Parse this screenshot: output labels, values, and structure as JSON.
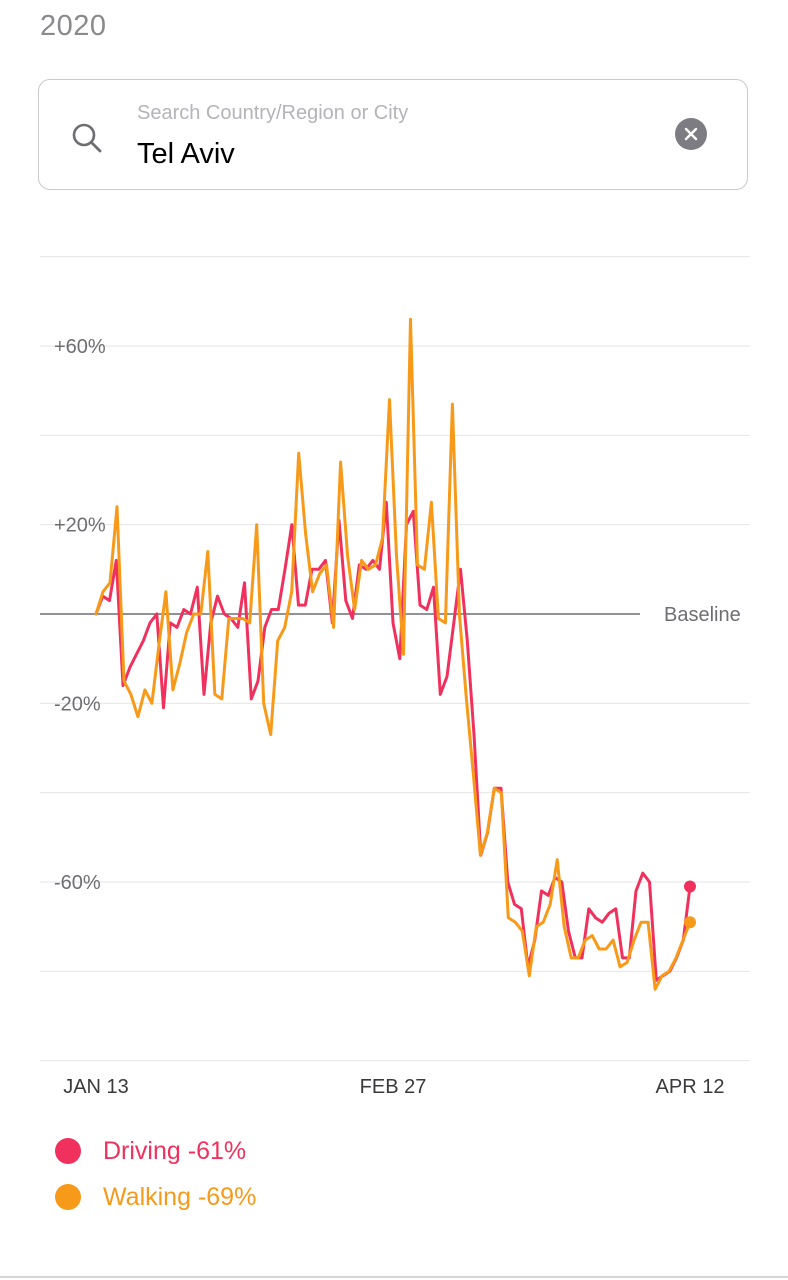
{
  "header": {
    "year": "2020"
  },
  "search": {
    "placeholder": "Search Country/Region or City",
    "value": "Tel Aviv",
    "icon": "search-icon",
    "clear_icon": "clear-icon"
  },
  "chart_data": {
    "type": "line",
    "y_ticks": [
      "+60%",
      "+20%",
      "-20%",
      "-60%"
    ],
    "y_tick_values": [
      60,
      20,
      -20,
      -60
    ],
    "ylim": [
      -100,
      80
    ],
    "grid": true,
    "baseline_label": "Baseline",
    "x_tick_labels": [
      "JAN 13",
      "FEB 27",
      "APR 12"
    ],
    "x_tick_days": [
      0,
      45,
      90
    ],
    "x_range": [
      "JAN 13",
      "APR 12"
    ],
    "series": [
      {
        "name": "Driving",
        "color": "#f0315d",
        "end_value_label": "-61%",
        "values": [
          0,
          4,
          3,
          12,
          -16,
          -12,
          -9,
          -6,
          -2,
          0,
          -21,
          -2,
          -3,
          1,
          0,
          6,
          -18,
          -2,
          4,
          0,
          -1,
          -3,
          7,
          -19,
          -15,
          -3,
          1,
          1,
          10,
          20,
          2,
          2,
          10,
          10,
          12,
          -2,
          21,
          3,
          -1,
          11,
          10,
          12,
          10,
          25,
          -2,
          -10,
          20,
          23,
          2,
          1,
          6,
          -18,
          -14,
          -2,
          10,
          -6,
          -27,
          -54,
          -49,
          -39,
          -39,
          -60,
          -65,
          -66,
          -79,
          -73,
          -62,
          -63,
          -59,
          -60,
          -71,
          -77,
          -77,
          -66,
          -68,
          -69,
          -67,
          -66,
          -77,
          -77,
          -62,
          -58,
          -60,
          -82,
          -81,
          -80,
          -77,
          -73,
          -61
        ]
      },
      {
        "name": "Walking",
        "color": "#f79a1a",
        "end_value_label": "-69%",
        "values": [
          0,
          5,
          7,
          24,
          -15,
          -18,
          -23,
          -17,
          -20,
          -7,
          5,
          -17,
          -11,
          -4,
          0,
          0,
          14,
          -18,
          -19,
          -1,
          -1,
          -1,
          -2,
          20,
          -20,
          -27,
          -6,
          -3,
          5,
          36,
          18,
          5,
          9,
          11,
          -3,
          34,
          13,
          1,
          12,
          10,
          11,
          17,
          48,
          13,
          -9,
          66,
          11,
          10,
          25,
          -1,
          -2,
          47,
          0,
          -19,
          -36,
          -54,
          -49,
          -39,
          -40,
          -68,
          -69,
          -71,
          -81,
          -70,
          -69,
          -65,
          -55,
          -70,
          -77,
          -77,
          -73,
          -72,
          -75,
          -75,
          -73,
          -79,
          -78,
          -73,
          -69,
          -69,
          -84,
          -81,
          -80,
          -77,
          -73,
          -69
        ]
      }
    ]
  }
}
